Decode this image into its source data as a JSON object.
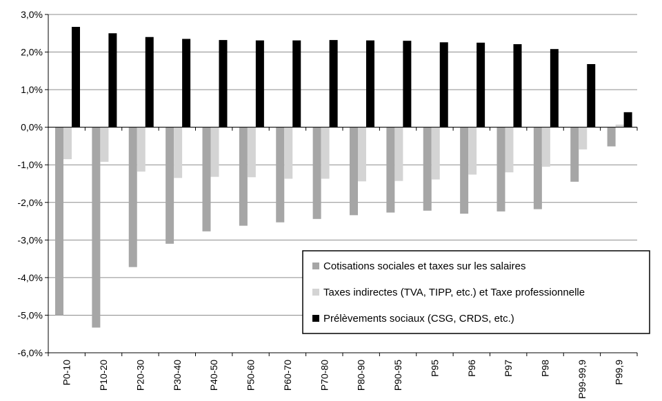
{
  "chart_data": {
    "type": "bar",
    "title": "",
    "xlabel": "",
    "ylabel": "",
    "ylim": [
      -6,
      3
    ],
    "y_ticks": [
      "3,0%",
      "2,0%",
      "1,0%",
      "0,0%",
      "-1,0%",
      "-2,0%",
      "-3,0%",
      "-4,0%",
      "-5,0%",
      "-6,0%"
    ],
    "y_tick_values": [
      3,
      2,
      1,
      0,
      -1,
      -2,
      -3,
      -4,
      -5,
      -6
    ],
    "grid": true,
    "legend_position": "bottom-right",
    "categories": [
      "P0-10",
      "P10-20",
      "P20-30",
      "P30-40",
      "P40-50",
      "P50-60",
      "P60-70",
      "P70-80",
      "P80-90",
      "P90-95",
      "P95",
      "P96",
      "P97",
      "P98",
      "P99-99,9",
      "P99,9"
    ],
    "series": [
      {
        "name": "Cotisations sociales et taxes sur les salaires",
        "color": "#a6a6a6",
        "values": [
          -5.0,
          -5.33,
          -3.72,
          -3.1,
          -2.77,
          -2.62,
          -2.53,
          -2.44,
          -2.34,
          -2.27,
          -2.22,
          -2.3,
          -2.24,
          -2.18,
          -1.45,
          -0.51
        ]
      },
      {
        "name": "Taxes indirectes (TVA, TIPP, etc.) et Taxe professionnelle",
        "color": "#d4d4d4",
        "values": [
          -0.85,
          -0.92,
          -1.18,
          -1.35,
          -1.32,
          -1.33,
          -1.37,
          -1.37,
          -1.44,
          -1.43,
          -1.39,
          -1.26,
          -1.2,
          -1.05,
          -0.59,
          0.07
        ]
      },
      {
        "name": "Prélèvements sociaux (CSG, CRDS, etc.)",
        "color": "#000000",
        "values": [
          2.67,
          2.5,
          2.4,
          2.35,
          2.32,
          2.31,
          2.31,
          2.32,
          2.31,
          2.3,
          2.26,
          2.25,
          2.21,
          2.08,
          1.68,
          0.4
        ]
      }
    ]
  }
}
